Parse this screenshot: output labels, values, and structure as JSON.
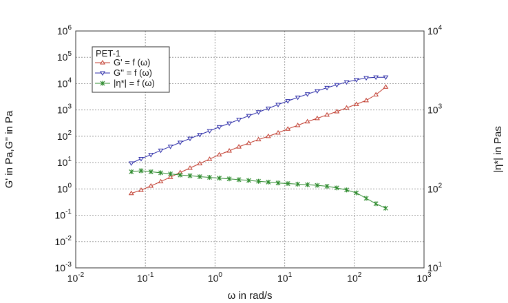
{
  "chart_data": {
    "type": "line",
    "xlabel": "ω in rad/s",
    "ylabel": "G' in Pa,G'' in Pa",
    "y2label": "|η*| in Pas",
    "x_scale": "log",
    "y_scale": "log",
    "y2_scale": "log",
    "xlim": [
      0.01,
      1000
    ],
    "ylim": [
      0.001,
      1000000
    ],
    "y2lim": [
      10,
      10000
    ],
    "grid": true,
    "legend_position": "top-left",
    "x_ticks": [
      {
        "base": "10",
        "exp": "-2"
      },
      {
        "base": "10",
        "exp": "-1"
      },
      {
        "base": "10",
        "exp": "0"
      },
      {
        "base": "10",
        "exp": "1"
      },
      {
        "base": "10",
        "exp": "2"
      },
      {
        "base": "10",
        "exp": "3"
      }
    ],
    "y_ticks": [
      {
        "base": "10",
        "exp": "-3"
      },
      {
        "base": "10",
        "exp": "-2"
      },
      {
        "base": "10",
        "exp": "-1"
      },
      {
        "base": "10",
        "exp": "0"
      },
      {
        "base": "10",
        "exp": "1"
      },
      {
        "base": "10",
        "exp": "2"
      },
      {
        "base": "10",
        "exp": "3"
      },
      {
        "base": "10",
        "exp": "4"
      },
      {
        "base": "10",
        "exp": "5"
      },
      {
        "base": "10",
        "exp": "6"
      }
    ],
    "y2_ticks": [
      {
        "base": "10",
        "exp": "1"
      },
      {
        "base": "10",
        "exp": "2"
      },
      {
        "base": "10",
        "exp": "3"
      },
      {
        "base": "10",
        "exp": "4"
      }
    ],
    "legend_title": "PET-1",
    "x": [
      0.0628,
      0.0868,
      0.12,
      0.166,
      0.229,
      0.316,
      0.437,
      0.604,
      0.835,
      1.15,
      1.6,
      2.2,
      3.05,
      4.21,
      5.82,
      8.04,
      11.1,
      15.4,
      21.2,
      29.3,
      40.5,
      56.0,
      77.4,
      107,
      148,
      204,
      282
    ],
    "series": [
      {
        "name": "G' = f (ω)",
        "axis": "left",
        "color": "#c0392b",
        "marker": "triangle-up",
        "values": [
          0.68,
          0.9,
          1.3,
          1.9,
          2.8,
          4.2,
          6.2,
          9.2,
          13.5,
          20,
          28,
          40,
          55,
          75,
          100,
          135,
          190,
          260,
          360,
          480,
          650,
          870,
          1200,
          1650,
          2300,
          3800,
          7500
        ]
      },
      {
        "name": "G'' = f (ω)",
        "axis": "left",
        "color": "#2c2ca8",
        "marker": "triangle-down",
        "values": [
          9.5,
          14,
          20,
          29,
          41,
          58,
          82,
          115,
          160,
          225,
          310,
          430,
          600,
          830,
          1150,
          1600,
          2200,
          3000,
          4000,
          5300,
          7000,
          9000,
          11500,
          14000,
          16500,
          17500,
          17500
        ]
      },
      {
        "name": "|η*| = f (ω)",
        "axis": "right",
        "color": "#2e8b2e",
        "marker": "star",
        "values": [
          165,
          170,
          165,
          160,
          155,
          150,
          147,
          143,
          140,
          137,
          134,
          131,
          128,
          125,
          122,
          119,
          117,
          115,
          113,
          111,
          108,
          103,
          97,
          89,
          76,
          65,
          57
        ]
      }
    ]
  }
}
